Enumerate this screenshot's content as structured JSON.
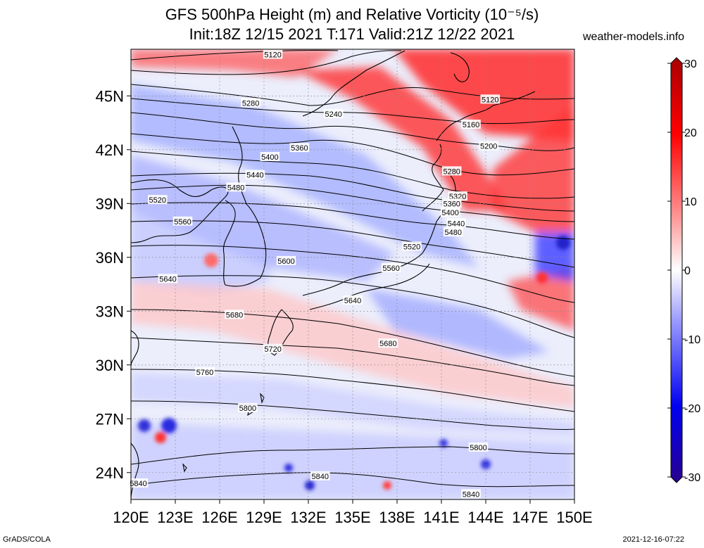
{
  "title": {
    "line1": "GFS 500hPa Height (m) and Relative Vorticity (10⁻⁵/s)",
    "line2": "Init:18Z 12/15 2021 T:171 Valid:21Z 12/22 2021"
  },
  "site": "weather-models.info",
  "footer": {
    "left": "GrADS/COLA",
    "right": "2021-12-16-07:22"
  },
  "axes": {
    "lat_labels": [
      "45N",
      "42N",
      "39N",
      "36N",
      "33N",
      "30N",
      "27N",
      "24N"
    ],
    "lat_values": [
      45,
      42,
      39,
      36,
      33,
      30,
      27,
      24
    ],
    "lon_labels": [
      "120E",
      "123E",
      "126E",
      "129E",
      "132E",
      "135E",
      "138E",
      "141E",
      "144E",
      "147E",
      "150E"
    ],
    "lon_values": [
      120,
      123,
      126,
      129,
      132,
      135,
      138,
      141,
      144,
      147,
      150
    ]
  },
  "colorbar": {
    "ticks": [
      "30",
      "20",
      "10",
      "0",
      "-10",
      "-20",
      "-30"
    ],
    "values": [
      30,
      20,
      10,
      0,
      -10,
      -20,
      -30
    ],
    "colors": {
      "max": "#a80000",
      "high": "#ff0000",
      "low_pos": "#ffffff",
      "low_neg": "#4040ff",
      "min": "#280090"
    }
  },
  "contours": [
    {
      "label": "5120",
      "lon": 129.6,
      "lat": 47.3
    },
    {
      "label": "5280",
      "lon": 128.1,
      "lat": 44.6
    },
    {
      "label": "5240",
      "lon": 133.7,
      "lat": 44.0
    },
    {
      "label": "5120",
      "lon": 144.3,
      "lat": 44.8
    },
    {
      "label": "5160",
      "lon": 143.0,
      "lat": 43.4
    },
    {
      "label": "5200",
      "lon": 144.2,
      "lat": 42.2
    },
    {
      "label": "5360",
      "lon": 131.4,
      "lat": 42.1
    },
    {
      "label": "5400",
      "lon": 129.4,
      "lat": 41.6
    },
    {
      "label": "5440",
      "lon": 128.4,
      "lat": 40.6
    },
    {
      "label": "5480",
      "lon": 127.1,
      "lat": 39.9
    },
    {
      "label": "5520",
      "lon": 121.8,
      "lat": 39.2
    },
    {
      "label": "5560",
      "lon": 123.5,
      "lat": 38.0
    },
    {
      "label": "5280",
      "lon": 141.7,
      "lat": 40.8
    },
    {
      "label": "5320",
      "lon": 142.1,
      "lat": 39.4
    },
    {
      "label": "5360",
      "lon": 141.7,
      "lat": 39.0
    },
    {
      "label": "5400",
      "lon": 141.6,
      "lat": 38.5
    },
    {
      "label": "5440",
      "lon": 142.0,
      "lat": 37.9
    },
    {
      "label": "5480",
      "lon": 141.8,
      "lat": 37.4
    },
    {
      "label": "5520",
      "lon": 139.0,
      "lat": 36.6
    },
    {
      "label": "5600",
      "lon": 130.5,
      "lat": 35.8
    },
    {
      "label": "5560",
      "lon": 137.6,
      "lat": 35.4
    },
    {
      "label": "5640",
      "lon": 122.5,
      "lat": 34.8
    },
    {
      "label": "5640",
      "lon": 135.0,
      "lat": 33.6
    },
    {
      "label": "5680",
      "lon": 127.0,
      "lat": 32.8
    },
    {
      "label": "5680",
      "lon": 137.4,
      "lat": 31.2
    },
    {
      "label": "5720",
      "lon": 129.6,
      "lat": 30.9
    },
    {
      "label": "5760",
      "lon": 125.0,
      "lat": 29.6
    },
    {
      "label": "5800",
      "lon": 127.9,
      "lat": 27.6
    },
    {
      "label": "5800",
      "lon": 143.5,
      "lat": 25.4
    },
    {
      "label": "5840",
      "lon": 132.8,
      "lat": 23.8
    },
    {
      "label": "5840",
      "lon": 120.5,
      "lat": 23.4
    },
    {
      "label": "5840",
      "lon": 143.0,
      "lat": 22.8
    }
  ]
}
